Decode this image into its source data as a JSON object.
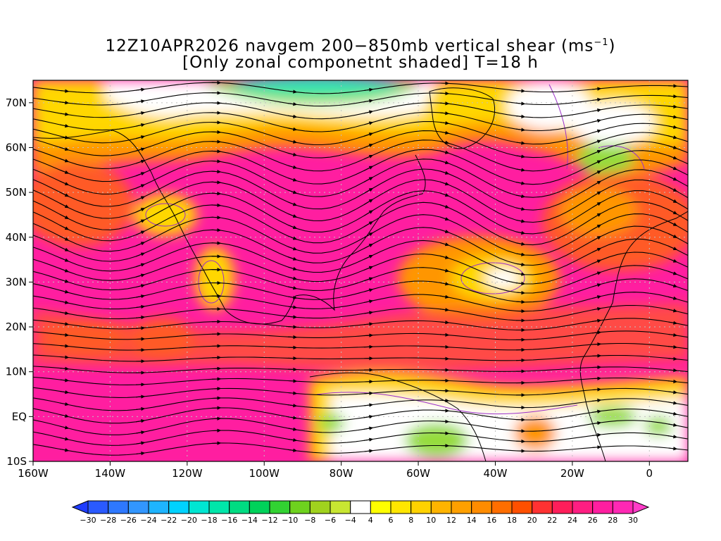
{
  "title": {
    "line1_main": "12Z10APR2026 navgem 200−850mb vertical shear (ms",
    "line1_sup": "−1",
    "line1_end": ")",
    "line2": "[Only zonal componetnt shaded] T=18 h"
  },
  "lat_labels": [
    "70N",
    "60N",
    "50N",
    "40N",
    "30N",
    "20N",
    "10N",
    "EQ",
    "10S"
  ],
  "lon_labels": [
    "160W",
    "140W",
    "120W",
    "100W",
    "80W",
    "60W",
    "40W",
    "20W",
    "0"
  ],
  "colorbar": {
    "labels": [
      "−30",
      "−28",
      "−26",
      "−24",
      "−22",
      "−20",
      "−18",
      "−16",
      "−14",
      "−12",
      "−10",
      "−8",
      "−6",
      "−4",
      "4",
      "6",
      "8",
      "10",
      "12",
      "14",
      "16",
      "18",
      "20",
      "22",
      "24",
      "26",
      "28",
      "30"
    ],
    "colors": [
      "#1e3cff",
      "#2a5aff",
      "#2e78ff",
      "#3296ff",
      "#1eb4ff",
      "#00d2ff",
      "#00e6d2",
      "#00e6aa",
      "#00dc82",
      "#00d25a",
      "#32d232",
      "#6ed21e",
      "#a0d21e",
      "#c8e632",
      "#ffffff",
      "#ffff00",
      "#ffe600",
      "#ffd200",
      "#ffb400",
      "#ffa000",
      "#ff8c00",
      "#ff6e00",
      "#ff5000",
      "#ff3232",
      "#ff1e5a",
      "#ff1e82",
      "#ff1ea0",
      "#ff28b4",
      "#ff3cc8"
    ]
  },
  "field_colors": {
    "strong_positive": "#ff1ea0",
    "positive": "#ff5a28",
    "moderate": "#ff9600",
    "weak": "#ffd700",
    "neutral": "#ffffff",
    "negative_weak": "#96dc3c",
    "negative": "#28e6b4"
  },
  "line_colors": {
    "streamline": "#000000",
    "contour": "#9b30c8",
    "coast": "#000000",
    "grid": "#c0c0c0"
  }
}
